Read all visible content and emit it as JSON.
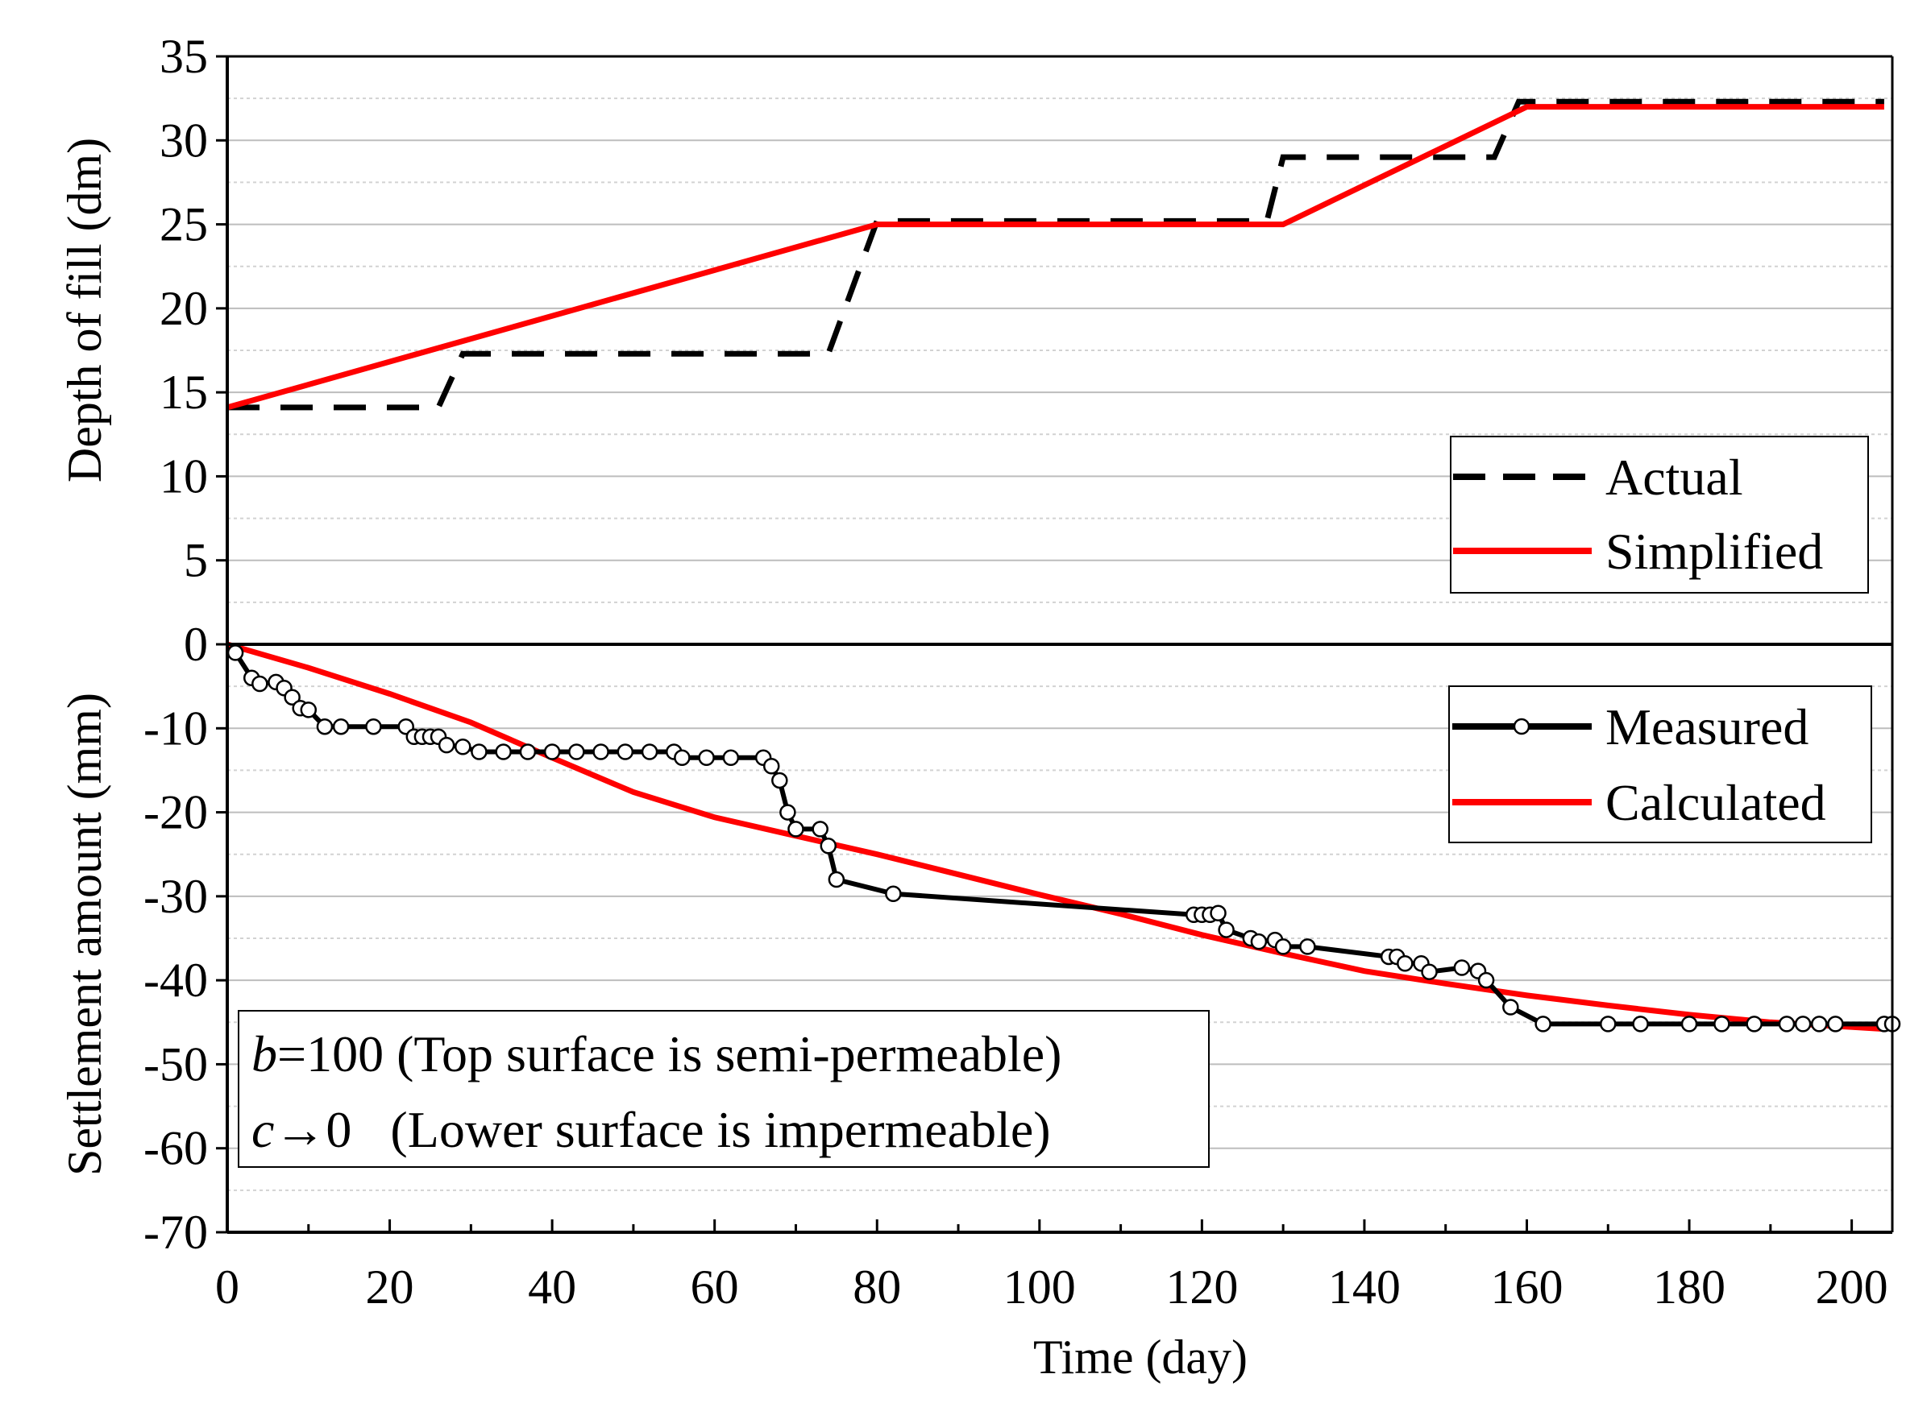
{
  "chart_data": [
    {
      "type": "line",
      "panel": "top",
      "ylabel": "Depth of fill (dm)",
      "ylim": [
        0,
        35
      ],
      "yticks": [
        0,
        5,
        10,
        15,
        20,
        25,
        30,
        35
      ],
      "xlim": [
        0,
        205
      ],
      "grid": true,
      "legend_position": "lower-right",
      "series": [
        {
          "name": "Actual",
          "style": "dashed",
          "color": "#000000",
          "x": [
            0,
            26,
            29,
            74,
            80,
            128,
            130,
            156,
            159,
            204
          ],
          "y": [
            14.1,
            14.1,
            17.3,
            17.3,
            25.2,
            25.2,
            29.0,
            29.0,
            32.3,
            32.3
          ]
        },
        {
          "name": "Simplified",
          "style": "solid",
          "color": "#ff0000",
          "x": [
            0,
            80,
            130,
            160,
            204
          ],
          "y": [
            14.1,
            25.0,
            25.0,
            32.0,
            32.0
          ]
        }
      ]
    },
    {
      "type": "line",
      "panel": "bottom",
      "ylabel": "Settlement amount (mm)",
      "xlabel": "Time (day)",
      "ylim": [
        -70,
        0
      ],
      "yticks": [
        0,
        -10,
        -20,
        -30,
        -40,
        -50,
        -60,
        -70
      ],
      "xlim": [
        0,
        205
      ],
      "xticks": [
        0,
        20,
        40,
        60,
        80,
        100,
        120,
        140,
        160,
        180,
        200
      ],
      "grid": true,
      "legend_position": "upper-right",
      "series": [
        {
          "name": "Measured",
          "style": "solid-markers",
          "color": "#000000",
          "x": [
            1,
            3,
            4,
            6,
            7,
            8,
            9,
            10,
            12,
            14,
            18,
            22,
            23,
            24,
            25,
            26,
            27,
            29,
            31,
            34,
            37,
            40,
            43,
            46,
            49,
            52,
            55,
            56,
            59,
            62,
            66,
            67,
            68,
            69,
            70,
            73,
            74,
            75,
            82,
            119,
            120,
            121,
            122,
            123,
            126,
            127,
            129,
            130,
            133,
            143,
            144,
            145,
            147,
            148,
            152,
            154,
            155,
            158,
            162,
            170,
            174,
            180,
            184,
            188,
            192,
            194,
            196,
            198,
            204,
            205
          ],
          "y": [
            -1,
            -4,
            -4.7,
            -4.5,
            -5.2,
            -6.3,
            -7.6,
            -7.8,
            -9.8,
            -9.8,
            -9.8,
            -9.8,
            -11,
            -11,
            -11,
            -11,
            -12,
            -12.2,
            -12.8,
            -12.8,
            -12.8,
            -12.8,
            -12.8,
            -12.8,
            -12.8,
            -12.8,
            -12.8,
            -13.5,
            -13.5,
            -13.5,
            -13.5,
            -14.5,
            -16.2,
            -20,
            -22,
            -22,
            -24,
            -28,
            -29.7,
            -32.2,
            -32.2,
            -32.2,
            -32,
            -34,
            -35,
            -35.4,
            -35.2,
            -36,
            -36,
            -37.2,
            -37.2,
            -38,
            -38,
            -39,
            -38.5,
            -38.9,
            -40,
            -43.2,
            -45.2,
            -45.2,
            -45.2,
            -45.2,
            -45.2,
            -45.2,
            -45.2,
            -45.2,
            -45.2,
            -45.2,
            -45.2,
            -45.2
          ]
        },
        {
          "name": "Calculated",
          "style": "solid",
          "color": "#ff0000",
          "x": [
            0,
            10,
            20,
            30,
            40,
            50,
            60,
            70,
            80,
            90,
            100,
            110,
            120,
            130,
            140,
            150,
            160,
            170,
            180,
            190,
            204
          ],
          "y": [
            0,
            -2.8,
            -5.9,
            -9.3,
            -13.5,
            -17.6,
            -20.6,
            -22.8,
            -25,
            -27.4,
            -29.8,
            -32.1,
            -34.6,
            -36.8,
            -38.9,
            -40.4,
            -41.8,
            -43,
            -44.1,
            -45,
            -45.8
          ]
        }
      ]
    }
  ],
  "legend_top": {
    "actual": "Actual",
    "simplified": "Simplified"
  },
  "legend_bottom": {
    "measured": "Measured",
    "calculated": "Calculated"
  },
  "note": {
    "line1_var": "b",
    "line1_rest": "=100 (Top surface is semi-permeable)",
    "line2_var": "c",
    "line2_rest": "→0   (Lower surface is impermeable)"
  }
}
